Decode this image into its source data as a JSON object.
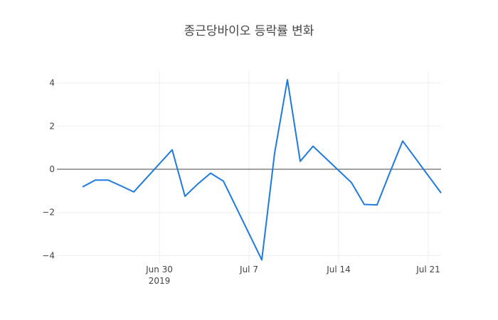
{
  "chart_data": {
    "type": "line",
    "title": "종근당바이오 등락률 변화",
    "xlabel": "",
    "ylabel": "",
    "x_range": [
      "2019-06-22",
      "2019-07-22"
    ],
    "ylim": [
      -4.35,
      4.55
    ],
    "grid": true,
    "zero_line": true,
    "x_ticks": [
      {
        "date": "2019-06-30",
        "label": "Jun 30",
        "sublabel": "2019"
      },
      {
        "date": "2019-07-07",
        "label": "Jul 7",
        "sublabel": ""
      },
      {
        "date": "2019-07-14",
        "label": "Jul 14",
        "sublabel": ""
      },
      {
        "date": "2019-07-21",
        "label": "Jul 21",
        "sublabel": ""
      }
    ],
    "y_ticks": [
      {
        "value": -4,
        "label": "−4"
      },
      {
        "value": -2,
        "label": "−2"
      },
      {
        "value": 0,
        "label": "0"
      },
      {
        "value": 2,
        "label": "2"
      },
      {
        "value": 4,
        "label": "4"
      }
    ],
    "series": [
      {
        "color": "#1f7ae0",
        "x": [
          "2019-06-24",
          "2019-06-25",
          "2019-06-26",
          "2019-06-27",
          "2019-06-28",
          "2019-07-01",
          "2019-07-02",
          "2019-07-03",
          "2019-07-04",
          "2019-07-05",
          "2019-07-08",
          "2019-07-09",
          "2019-07-10",
          "2019-07-11",
          "2019-07-12",
          "2019-07-15",
          "2019-07-16",
          "2019-07-17",
          "2019-07-18",
          "2019-07-19",
          "2019-07-22"
        ],
        "y": [
          -0.82,
          -0.5,
          -0.5,
          -0.77,
          -1.05,
          0.9,
          -1.25,
          -0.68,
          -0.18,
          -0.55,
          -4.2,
          0.75,
          4.15,
          0.37,
          1.07,
          -0.62,
          -1.63,
          -1.65,
          -0.15,
          1.31,
          -1.1
        ]
      }
    ]
  }
}
